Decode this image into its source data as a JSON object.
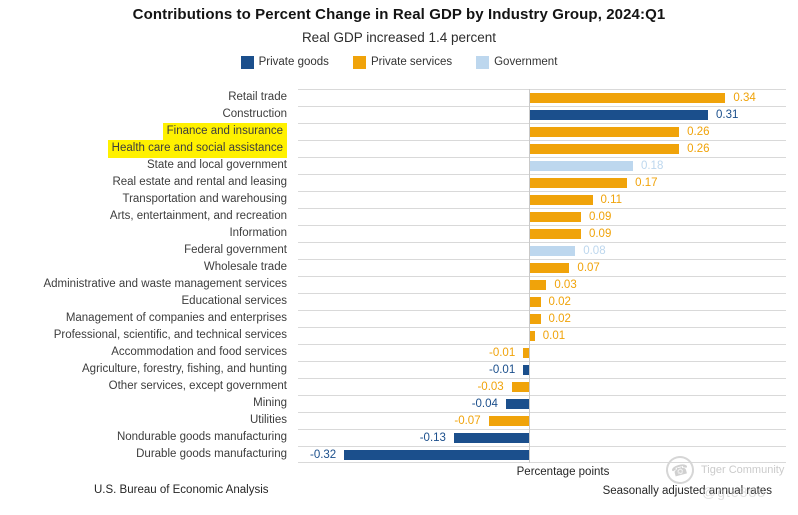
{
  "page": {
    "title": "Contributions to Percent Change in Real GDP by Industry Group, 2024:Q1",
    "subtitle": "Real GDP increased 1.4 percent"
  },
  "legend": {
    "items": [
      {
        "label": "Private goods",
        "color": "#1B4F8C"
      },
      {
        "label": "Private services",
        "color": "#F0A30A"
      },
      {
        "label": "Government",
        "color": "#BDD7EE"
      }
    ]
  },
  "chart_data": {
    "type": "bar",
    "orientation": "horizontal",
    "title": "Contributions to Percent Change in Real GDP by Industry Group, 2024:Q1",
    "subtitle": "Real GDP increased 1.4 percent",
    "xlabel": "Percentage points",
    "xlim": [
      -0.4,
      0.445
    ],
    "grid": "row-separator-lines",
    "legend_position": "top",
    "value_label_format": "0.00",
    "groups": {
      "Private goods": "#1B4F8C",
      "Private services": "#F0A30A",
      "Government": "#BDD7EE"
    },
    "bars": [
      {
        "category": "Retail trade",
        "value": 0.34,
        "group": "Private services",
        "highlighted": false
      },
      {
        "category": "Construction",
        "value": 0.31,
        "group": "Private goods",
        "highlighted": false
      },
      {
        "category": "Finance and insurance",
        "value": 0.26,
        "group": "Private services",
        "highlighted": true
      },
      {
        "category": "Health care and social assistance",
        "value": 0.26,
        "group": "Private services",
        "highlighted": true
      },
      {
        "category": "State and local government",
        "value": 0.18,
        "group": "Government",
        "highlighted": false
      },
      {
        "category": "Real estate and rental and leasing",
        "value": 0.17,
        "group": "Private services",
        "highlighted": false
      },
      {
        "category": "Transportation and warehousing",
        "value": 0.11,
        "group": "Private services",
        "highlighted": false
      },
      {
        "category": "Arts, entertainment, and recreation",
        "value": 0.09,
        "group": "Private services",
        "highlighted": false
      },
      {
        "category": "Information",
        "value": 0.09,
        "group": "Private services",
        "highlighted": false
      },
      {
        "category": "Federal government",
        "value": 0.08,
        "group": "Government",
        "highlighted": false
      },
      {
        "category": "Wholesale trade",
        "value": 0.07,
        "group": "Private services",
        "highlighted": false
      },
      {
        "category": "Administrative and waste management services",
        "value": 0.03,
        "group": "Private services",
        "highlighted": false
      },
      {
        "category": "Educational services",
        "value": 0.02,
        "group": "Private services",
        "highlighted": false
      },
      {
        "category": "Management of companies and enterprises",
        "value": 0.02,
        "group": "Private services",
        "highlighted": false
      },
      {
        "category": "Professional, scientific, and technical services",
        "value": 0.01,
        "group": "Private services",
        "highlighted": false
      },
      {
        "category": "Accommodation and food services",
        "value": -0.01,
        "group": "Private services",
        "highlighted": false
      },
      {
        "category": "Agriculture, forestry, fishing, and hunting",
        "value": -0.01,
        "group": "Private goods",
        "highlighted": false
      },
      {
        "category": "Other services, except government",
        "value": -0.03,
        "group": "Private services",
        "highlighted": false
      },
      {
        "category": "Mining",
        "value": -0.04,
        "group": "Private goods",
        "highlighted": false
      },
      {
        "category": "Utilities",
        "value": -0.07,
        "group": "Private services",
        "highlighted": false
      },
      {
        "category": "Nondurable goods manufacturing",
        "value": -0.13,
        "group": "Private goods",
        "highlighted": false
      },
      {
        "category": "Durable goods manufacturing",
        "value": -0.32,
        "group": "Private goods",
        "highlighted": false
      }
    ]
  },
  "footer": {
    "axis_label": "Percentage points",
    "source": "U.S. Bureau of Economic Analysis",
    "note": "Seasonally adjusted annual rates"
  },
  "watermark": {
    "text": "Tiger Community",
    "handle": "@gte888",
    "icon": "phone-icon",
    "phone_glyph": "☎"
  },
  "colors": {
    "highlight": "#FFF100",
    "gridline": "#D9D9D9",
    "zero_line": "#C9C9C9"
  }
}
